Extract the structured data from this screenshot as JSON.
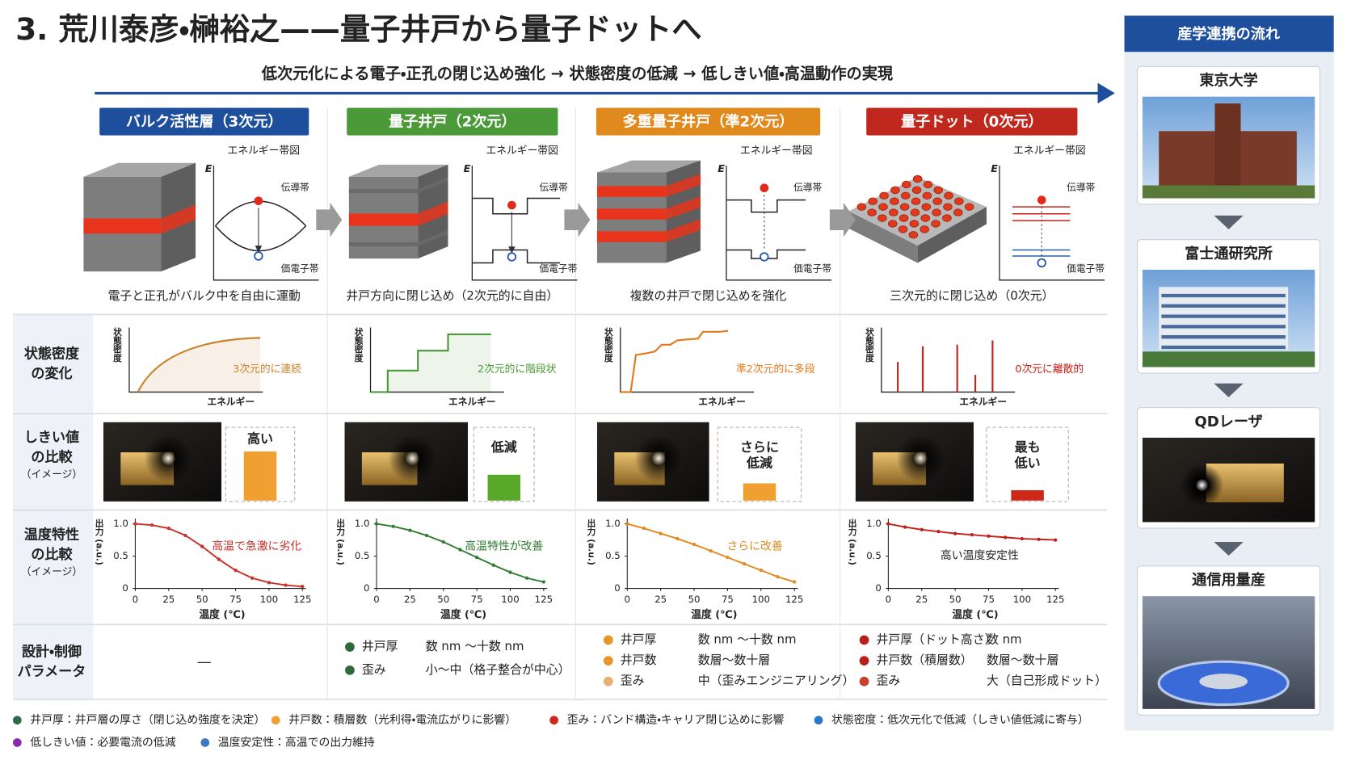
{
  "title": "3. 荒川泰彦・榊裕之——量子井戸から量子ドットへ",
  "subtitle": "低次元化による電子・正孔の閉じ込め強化 → 状態密度の低減 → 低しきい値・高温動作の実現",
  "band_diagram": {
    "title": "エネルギー帯図",
    "axis": "E",
    "conduction": "伝導帯",
    "valence": "価電子帯"
  },
  "dos_axes": {
    "y_label": "状態密度",
    "x_label": "エネルギー"
  },
  "row_labels": [
    {
      "lines": [
        "状態密度",
        "の変化"
      ]
    },
    {
      "lines": [
        "しきい値",
        "の比較"
      ],
      "note": "（イメージ）"
    },
    {
      "lines": [
        "温度特性",
        "の比較"
      ],
      "note": "（イメージ）"
    },
    {
      "lines": [
        "設計・制御",
        "パラメータ"
      ]
    }
  ],
  "temperature_chart": {
    "y_label": "出力 (a.u.)",
    "x_label": "温度 (℃)",
    "xlim": [
      0,
      125
    ],
    "ylim": [
      0,
      1
    ],
    "xticks": [
      0,
      25,
      50,
      75,
      100,
      125
    ],
    "yticks": [
      0,
      0.5,
      {
        "value": 1,
        "label": "1.0"
      }
    ],
    "x": [
      0,
      12.5,
      25,
      37.5,
      50,
      62.5,
      75,
      87.5,
      100,
      112.5,
      125
    ]
  },
  "columns": [
    {
      "header": "バルク活性層（3次元）",
      "color": "#1d4f9c",
      "description": "電子と正孔がバルク中を自由に運動",
      "dos_label": "3次元的に連続",
      "dos_color": "#c7832e",
      "threshold_label": [
        "高い"
      ],
      "threshold_color": "#f0a030",
      "temperature": {
        "label": "高温で急激に劣化",
        "color": "#c8302a",
        "values": [
          1.0,
          0.98,
          0.93,
          0.82,
          0.65,
          0.45,
          0.28,
          0.16,
          0.09,
          0.05,
          0.03
        ]
      },
      "parameters": "—"
    },
    {
      "header": "量子井戸（2次元）",
      "color": "#4b9a3a",
      "description": "井戸方向に閉じ込め（2次元的に自由）",
      "dos_label": "2次元的に階段状",
      "dos_color": "#4b9a3a",
      "threshold_label": [
        "低減"
      ],
      "threshold_color": "#5aa82a",
      "temperature": {
        "label": "高温特性が改善",
        "color": "#2f7d32",
        "values": [
          1.0,
          0.96,
          0.9,
          0.82,
          0.72,
          0.6,
          0.48,
          0.36,
          0.25,
          0.16,
          0.1
        ]
      },
      "parameters": [
        {
          "bullet": "#2f6b3a",
          "name": "井戸厚",
          "value": "数 nm ～十数 nm"
        },
        {
          "bullet": "#2f6b3a",
          "name": "歪み",
          "value": "小～中（格子整合が中心）"
        }
      ]
    },
    {
      "header": "多重量子井戸（準2次元）",
      "color": "#e08a1e",
      "description": "複数の井戸で閉じ込めを強化",
      "dos_label": "準2次元的に多段",
      "dos_color": "#e07a1a",
      "threshold_label": [
        "さらに",
        "低減"
      ],
      "threshold_color": "#f0a030",
      "temperature": {
        "label": "さらに改善",
        "color": "#e0891e",
        "values": [
          1.0,
          0.93,
          0.85,
          0.77,
          0.68,
          0.58,
          0.48,
          0.38,
          0.28,
          0.18,
          0.1
        ]
      },
      "parameters": [
        {
          "bullet": "#e8962a",
          "name": "井戸厚",
          "value": "数 nm ～十数 nm"
        },
        {
          "bullet": "#e8962a",
          "name": "井戸数",
          "value": "数層～数十層"
        },
        {
          "bullet": "#e8b070",
          "name": "歪み",
          "value": "中（歪みエンジニアリング）"
        }
      ]
    },
    {
      "header": "量子ドット（0次元）",
      "color": "#c0281e",
      "description": "三次元的に閉じ込め（0次元）",
      "dos_label": "0次元に離散的",
      "dos_color": "#c8201a",
      "threshold_label": [
        "最も",
        "低い"
      ],
      "threshold_color": "#d02818",
      "temperature": {
        "label": "高い温度安定性",
        "color": "#c0201a",
        "values": [
          1.0,
          0.95,
          0.91,
          0.88,
          0.85,
          0.83,
          0.81,
          0.79,
          0.77,
          0.76,
          0.75
        ]
      },
      "parameters": [
        {
          "bullet": "#b8201a",
          "name": "井戸厚（ドット高さ）",
          "value": "数 nm"
        },
        {
          "bullet": "#b8201a",
          "name": "井戸数（積層数）",
          "value": "数層～数十層"
        },
        {
          "bullet": "#c8402a",
          "name": "歪み",
          "value": "大（自己形成ドット）"
        }
      ]
    }
  ],
  "legend": [
    {
      "color": "#2f6b4a",
      "text": "井戸厚：井戸層の厚さ（閉じ込め強度を決定）"
    },
    {
      "color": "#f0a030",
      "text": "井戸数：積層数（光利得・電流広がりに影響）"
    },
    {
      "color": "#d02818",
      "text": "歪み：バンド構造・キャリア閉じ込めに影響"
    },
    {
      "color": "#2a78c8",
      "text": "状態密度：低次元化で低減（しきい値低減に寄与）"
    },
    {
      "color": "#8a2aa8",
      "text": "低しきい値：必要電流の低減"
    },
    {
      "color": "#3a7ac0",
      "text": "温度安定性：高温での出力維持"
    }
  ],
  "flow": {
    "title": "産学連携の流れ",
    "steps": [
      "東京大学",
      "富士通研究所",
      "QDレーザ",
      "通信用量産"
    ]
  }
}
